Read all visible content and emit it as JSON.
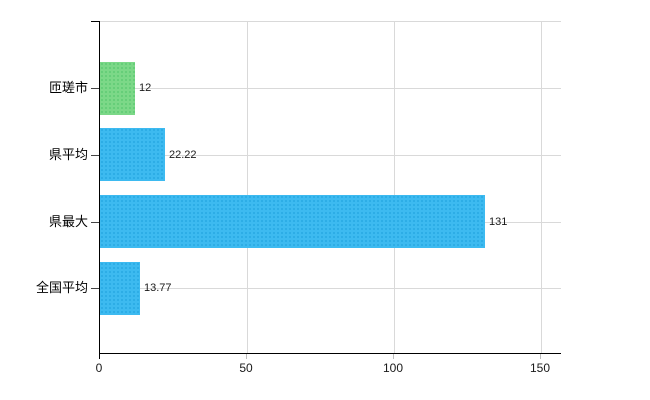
{
  "chart_data": {
    "type": "bar",
    "orientation": "horizontal",
    "title": "",
    "xlabel": "",
    "ylabel": "",
    "categories": [
      "匝瑳市",
      "県平均",
      "県最大",
      "全国平均"
    ],
    "values": [
      12,
      22.22,
      131,
      13.77
    ],
    "value_labels": [
      "12",
      "22.22",
      "131",
      "13.77"
    ],
    "bar_color_names": [
      "green",
      "blue",
      "blue",
      "blue"
    ],
    "bar_colors": [
      "#7cd888",
      "#3dbaf0",
      "#3dbaf0",
      "#3dbaf0"
    ],
    "xlim": [
      0,
      157
    ],
    "x_ticks": [
      0,
      50,
      100,
      150
    ],
    "x_tick_labels": [
      "0",
      "50",
      "100",
      "150"
    ],
    "grid": true,
    "legend": false,
    "colors": {
      "grid": "#d9d9d9",
      "axis": "#000000",
      "text": "#1a1a1a",
      "background": "#ffffff"
    }
  }
}
